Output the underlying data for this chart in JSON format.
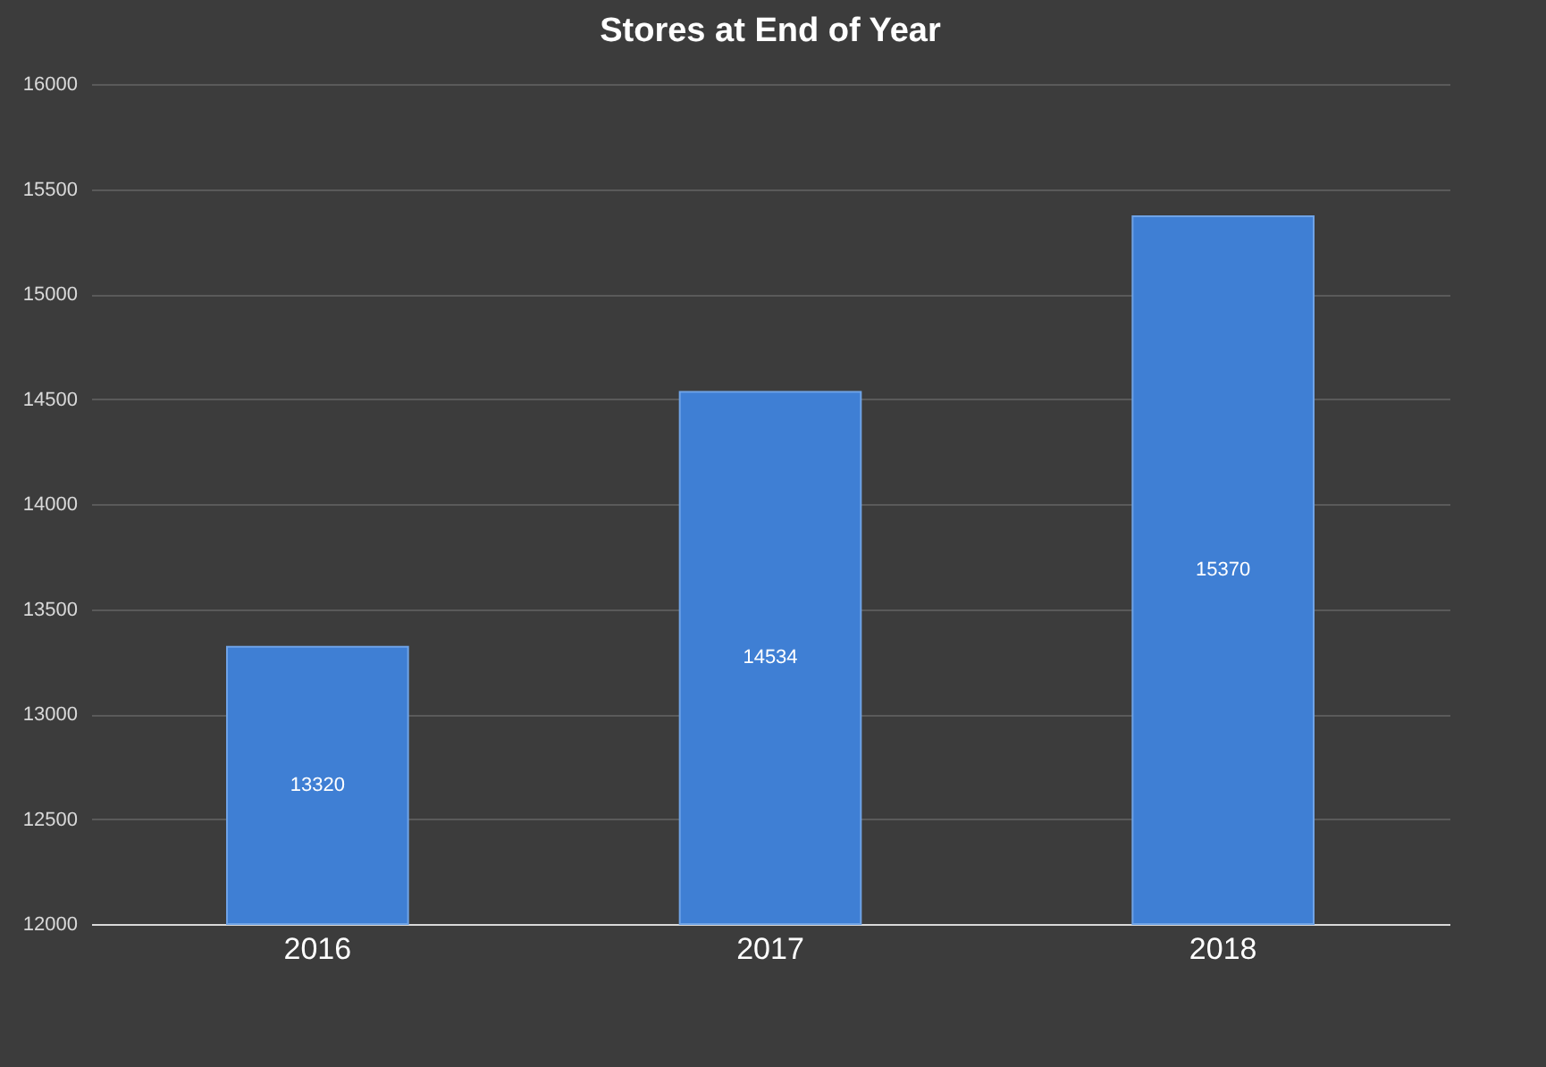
{
  "chart_data": {
    "type": "bar",
    "title": "Stores at End of Year",
    "categories": [
      "2016",
      "2017",
      "2018"
    ],
    "values": [
      13320,
      14534,
      15370
    ],
    "color": "#3f7fd4",
    "ylim": [
      12000,
      16000
    ],
    "yticks": [
      12000,
      12500,
      13000,
      13500,
      14000,
      14500,
      15000,
      15500,
      16000
    ],
    "grid": "y",
    "data_labels": true
  }
}
